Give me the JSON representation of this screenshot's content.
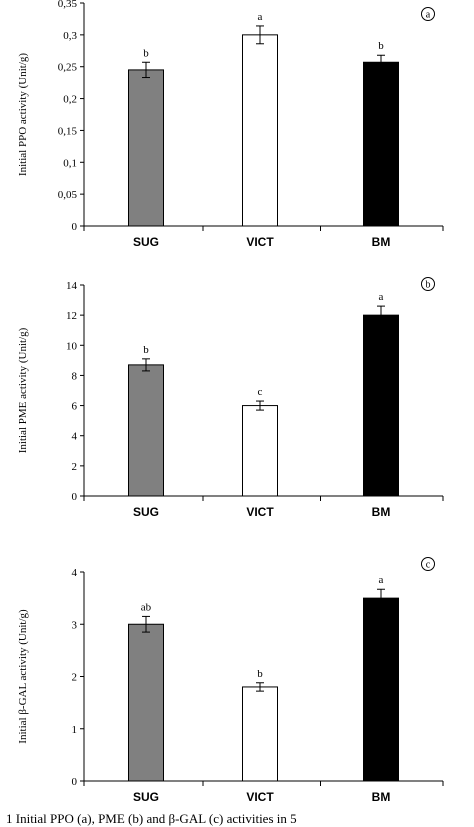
{
  "chart_data": [
    {
      "type": "bar",
      "panel_label": "a",
      "categories": [
        "SUG",
        "VICT",
        "BM"
      ],
      "values": [
        0.245,
        0.3,
        0.257
      ],
      "error": [
        0.012,
        0.014,
        0.011
      ],
      "significance": [
        "b",
        "a",
        "b"
      ],
      "bar_colors": [
        "#808080",
        "#ffffff",
        "#000000"
      ],
      "ylabel": "Initial PPO activity (Unit/g)",
      "xlabel": "",
      "ylim": [
        0,
        0.35
      ],
      "yticks": [
        "0",
        "0,05",
        "0,1",
        "0,15",
        "0,2",
        "0,25",
        "0,3",
        "0,35"
      ],
      "grid": false
    },
    {
      "type": "bar",
      "panel_label": "b",
      "categories": [
        "SUG",
        "VICT",
        "BM"
      ],
      "values": [
        8.7,
        6.0,
        12.0
      ],
      "error": [
        0.4,
        0.3,
        0.6
      ],
      "significance": [
        "b",
        "c",
        "a"
      ],
      "bar_colors": [
        "#808080",
        "#ffffff",
        "#000000"
      ],
      "ylabel": "Initial PME activity (Unit/g)",
      "xlabel": "",
      "ylim": [
        0,
        14
      ],
      "yticks": [
        "0",
        "2",
        "4",
        "6",
        "8",
        "10",
        "12",
        "14"
      ],
      "grid": false
    },
    {
      "type": "bar",
      "panel_label": "c",
      "categories": [
        "SUG",
        "VICT",
        "BM"
      ],
      "values": [
        3.0,
        1.8,
        3.5
      ],
      "error": [
        0.15,
        0.08,
        0.17
      ],
      "significance": [
        "ab",
        "b",
        "a"
      ],
      "bar_colors": [
        "#808080",
        "#ffffff",
        "#000000"
      ],
      "ylabel": "Initial β-GAL activity (Unit/g)",
      "xlabel": "",
      "ylim": [
        0,
        4
      ],
      "yticks": [
        "0",
        "1",
        "2",
        "3",
        "4"
      ],
      "grid": false
    }
  ],
  "caption": "1 Initial PPO (a), PME (b) and β-GAL (c) activities in 5"
}
